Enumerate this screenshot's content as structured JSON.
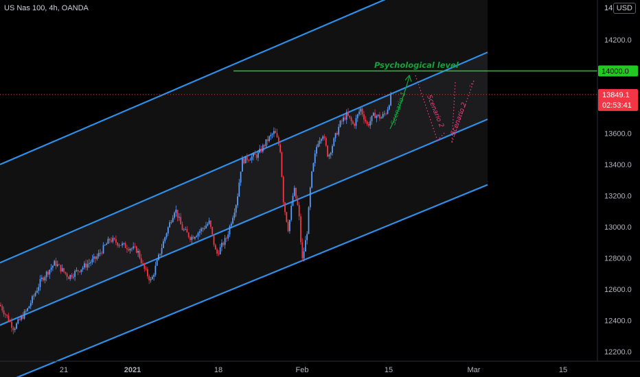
{
  "header": {
    "title": "US Nas 100, 4h, OANDA",
    "currency_label": "USD",
    "axis_cut_label": "14"
  },
  "price_tags": {
    "psych_level": "14000.0",
    "last_price": "13849.1",
    "countdown": "02:53:41"
  },
  "annotations": {
    "psych": "Psychological level",
    "scenario1": "Scenario 1",
    "scenario2a": "Scenario 2",
    "scenario2b": "Scenario 2"
  },
  "colors": {
    "background": "#000000",
    "up": "#5b9cf6",
    "down": "#f23645",
    "channel": "#2f8fe8",
    "psych_line": "#22c922",
    "psych_text": "#0fa33b",
    "scenario": "#e0407a",
    "last_price": "#f23645",
    "grid_text": "#b2b5be"
  },
  "chart_data": {
    "type": "candlestick",
    "title": "US Nas 100, 4h, OANDA",
    "x_ticks": [
      "21",
      "2021",
      "18",
      "Feb",
      "15",
      "Mar",
      "15"
    ],
    "y_ticks": [
      12200.0,
      12400.0,
      12600.0,
      12800.0,
      13000.0,
      13200.0,
      13400.0,
      13600.0,
      14200.0
    ],
    "y_tick_labels": [
      "12200.0",
      "12400.0",
      "12600.0",
      "12800.0",
      "13000.0",
      "13200.0",
      "13400.0",
      "13600.0",
      "14200.0"
    ],
    "ylim": [
      12170,
      14450
    ],
    "horizontal_level": 14000.0,
    "last_price": 13849.1,
    "series": [
      {
        "name": "Price",
        "points": [
          [
            0,
            12500
          ],
          [
            20,
            12350
          ],
          [
            40,
            12470
          ],
          [
            60,
            12660
          ],
          [
            80,
            12770
          ],
          [
            100,
            12680
          ],
          [
            120,
            12740
          ],
          [
            140,
            12800
          ],
          [
            160,
            12920
          ],
          [
            180,
            12880
          ],
          [
            200,
            12850
          ],
          [
            210,
            12730
          ],
          [
            220,
            12650
          ],
          [
            232,
            12820
          ],
          [
            242,
            12960
          ],
          [
            255,
            13120
          ],
          [
            265,
            12990
          ],
          [
            278,
            12930
          ],
          [
            290,
            12970
          ],
          [
            305,
            13030
          ],
          [
            315,
            12820
          ],
          [
            330,
            12930
          ],
          [
            345,
            13170
          ],
          [
            352,
            13420
          ],
          [
            360,
            13440
          ],
          [
            375,
            13460
          ],
          [
            390,
            13560
          ],
          [
            400,
            13610
          ],
          [
            408,
            13500
          ],
          [
            413,
            13150
          ],
          [
            420,
            12980
          ],
          [
            428,
            13250
          ],
          [
            435,
            13100
          ],
          [
            440,
            12780
          ],
          [
            447,
            12960
          ],
          [
            453,
            13310
          ],
          [
            462,
            13540
          ],
          [
            470,
            13600
          ],
          [
            478,
            13450
          ],
          [
            486,
            13550
          ],
          [
            495,
            13660
          ],
          [
            505,
            13720
          ],
          [
            515,
            13650
          ],
          [
            525,
            13760
          ],
          [
            535,
            13650
          ],
          [
            545,
            13720
          ],
          [
            555,
            13700
          ],
          [
            563,
            13740
          ],
          [
            570,
            13849
          ]
        ]
      }
    ],
    "channel": {
      "description": "Ascending parallel channel with upper, middle-upper, middle-lower and lower rails",
      "rails": [
        {
          "name": "upper",
          "start": [
            0,
            13400
          ],
          "end": [
            710,
            14740
          ]
        },
        {
          "name": "mid_upper",
          "start": [
            0,
            12770
          ],
          "end": [
            710,
            14120
          ]
        },
        {
          "name": "mid_lower",
          "start": [
            0,
            12370
          ],
          "end": [
            710,
            13690
          ]
        },
        {
          "name": "lower",
          "start": [
            0,
            11990
          ],
          "end": [
            710,
            13270
          ]
        }
      ]
    },
    "annotations": [
      "Psychological level",
      "Scenario 1",
      "Scenario 2",
      "Scenario 2"
    ],
    "grid": false
  }
}
